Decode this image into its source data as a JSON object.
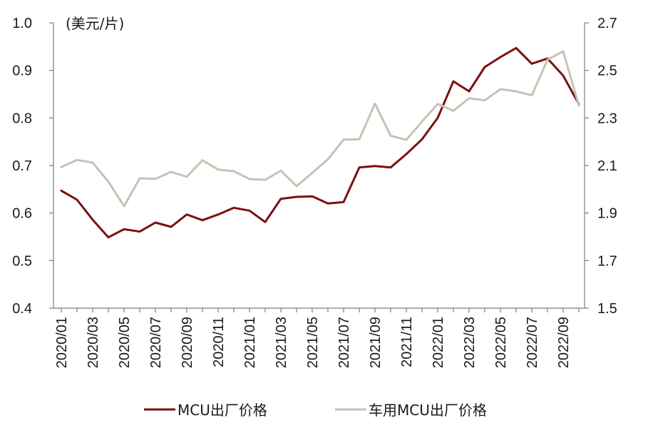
{
  "chart_data": {
    "type": "line",
    "unit_label": "(美元/片)",
    "x": [
      "2020/01",
      "2020/02",
      "2020/03",
      "2020/04",
      "2020/05",
      "2020/06",
      "2020/07",
      "2020/08",
      "2020/09",
      "2020/10",
      "2020/11",
      "2020/12",
      "2021/01",
      "2021/02",
      "2021/03",
      "2021/04",
      "2021/05",
      "2021/06",
      "2021/07",
      "2021/08",
      "2021/09",
      "2021/10",
      "2021/11",
      "2021/12",
      "2022/01",
      "2022/02",
      "2022/03",
      "2022/04",
      "2022/05",
      "2022/06",
      "2022/07",
      "2022/08",
      "2022/09",
      "2022/10"
    ],
    "x_tick_labels": [
      "2020/01",
      "2020/03",
      "2020/05",
      "2020/07",
      "2020/09",
      "2020/11",
      "2021/01",
      "2021/03",
      "2021/05",
      "2021/07",
      "2021/09",
      "2021/11",
      "2022/01",
      "2022/03",
      "2022/05",
      "2022/07",
      "2022/09"
    ],
    "left_axis": {
      "ylim": [
        0.4,
        1.0
      ],
      "ticks": [
        "0.4",
        "0.5",
        "0.6",
        "0.7",
        "0.8",
        "0.9",
        "1.0"
      ]
    },
    "right_axis": {
      "ylim": [
        1.5,
        2.7
      ],
      "ticks": [
        "1.5",
        "1.7",
        "1.9",
        "2.1",
        "2.3",
        "2.5",
        "2.7"
      ]
    },
    "series": [
      {
        "name": "MCU出厂价格",
        "axis": "left",
        "color": "#7b1010",
        "values": [
          0.647,
          0.628,
          0.586,
          0.549,
          0.566,
          0.561,
          0.58,
          0.571,
          0.597,
          0.585,
          0.597,
          0.611,
          0.605,
          0.581,
          0.63,
          0.634,
          0.635,
          0.62,
          0.623,
          0.696,
          0.699,
          0.696,
          0.724,
          0.755,
          0.8,
          0.877,
          0.856,
          0.907,
          0.928,
          0.947,
          0.914,
          0.925,
          0.889,
          0.829
        ]
      },
      {
        "name": "车用MCU出厂价格",
        "axis": "right",
        "color": "#c4c4b4",
        "values": [
          2.093,
          2.123,
          2.112,
          2.032,
          1.929,
          2.046,
          2.044,
          2.073,
          2.053,
          2.122,
          2.083,
          2.076,
          2.043,
          2.04,
          2.078,
          2.013,
          2.069,
          2.126,
          2.209,
          2.21,
          2.36,
          2.225,
          2.208,
          2.285,
          2.359,
          2.33,
          2.383,
          2.374,
          2.421,
          2.412,
          2.395,
          2.545,
          2.58,
          2.352
        ]
      }
    ],
    "grid": false,
    "legend_position": "bottom"
  }
}
